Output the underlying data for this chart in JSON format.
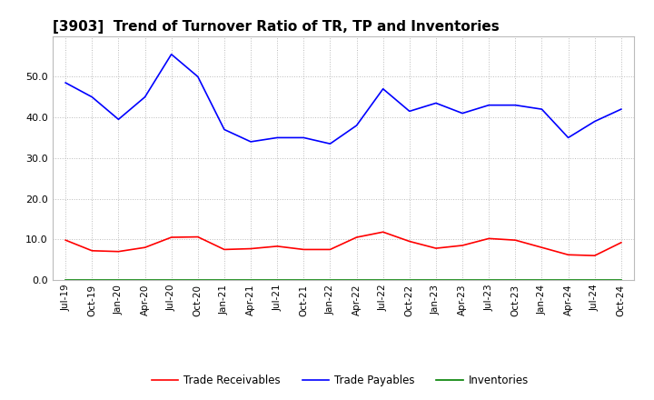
{
  "title": "[3903]  Trend of Turnover Ratio of TR, TP and Inventories",
  "x_labels": [
    "Jul-19",
    "Oct-19",
    "Jan-20",
    "Apr-20",
    "Jul-20",
    "Oct-20",
    "Jan-21",
    "Apr-21",
    "Jul-21",
    "Oct-21",
    "Jan-22",
    "Apr-22",
    "Jul-22",
    "Oct-22",
    "Jan-23",
    "Apr-23",
    "Jul-23",
    "Oct-23",
    "Jan-24",
    "Apr-24",
    "Jul-24",
    "Oct-24"
  ],
  "trade_receivables": [
    9.8,
    7.2,
    7.0,
    8.0,
    10.5,
    10.6,
    7.5,
    7.7,
    8.3,
    7.5,
    7.5,
    10.5,
    11.8,
    9.5,
    7.8,
    8.5,
    10.2,
    9.8,
    8.0,
    6.2,
    6.0,
    9.2
  ],
  "trade_payables": [
    48.5,
    45.0,
    39.5,
    45.0,
    55.5,
    50.0,
    37.0,
    34.0,
    35.0,
    35.0,
    33.5,
    38.0,
    47.0,
    41.5,
    43.5,
    41.0,
    43.0,
    43.0,
    42.0,
    35.0,
    39.0,
    42.0
  ],
  "inventories": [
    0.0,
    0.0,
    0.0,
    0.0,
    0.0,
    0.0,
    0.0,
    0.0,
    0.0,
    0.0,
    0.0,
    0.0,
    0.0,
    0.0,
    0.0,
    0.0,
    0.0,
    0.0,
    0.0,
    0.0,
    0.0,
    0.0
  ],
  "tr_color": "#ff0000",
  "tp_color": "#0000ff",
  "inv_color": "#008000",
  "ylim": [
    0.0,
    60.0
  ],
  "yticks": [
    0.0,
    10.0,
    20.0,
    30.0,
    40.0,
    50.0
  ],
  "bg_color": "#ffffff",
  "plot_bg_color": "#ffffff",
  "grid_color": "#aaaaaa",
  "title_fontsize": 11,
  "tick_fontsize": 7.5,
  "legend_labels": [
    "Trade Receivables",
    "Trade Payables",
    "Inventories"
  ]
}
